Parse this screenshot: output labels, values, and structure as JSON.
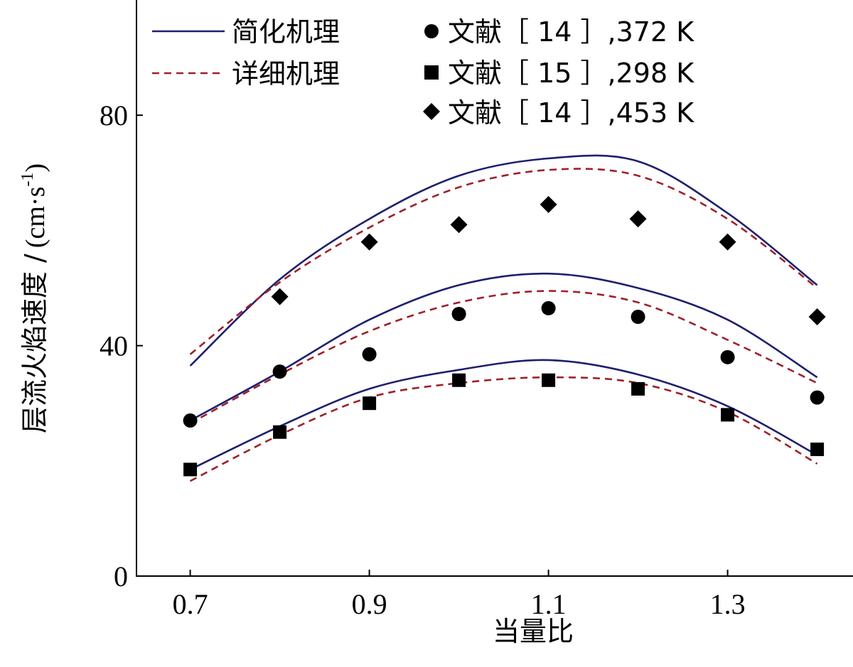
{
  "chart_data": {
    "type": "line",
    "title": "",
    "xlabel": "当量比",
    "ylabel": "层流火焰速度 /",
    "ylabel_unit": "(cm·s",
    "ylabel_unit_sup": "-1",
    "ylabel_unit_close": ")",
    "xlim": [
      0.64,
      1.44
    ],
    "ylim": [
      0,
      100
    ],
    "xticks": [
      {
        "value": 0.7,
        "label": "0.7"
      },
      {
        "value": 0.9,
        "label": "0.9"
      },
      {
        "value": 1.1,
        "label": "1.1"
      },
      {
        "value": 1.3,
        "label": "1.3"
      }
    ],
    "yticks": [
      {
        "value": 0,
        "label": "0"
      },
      {
        "value": 40,
        "label": "40"
      },
      {
        "value": 80,
        "label": "80"
      }
    ],
    "colors": {
      "solid": "#1f1f6e",
      "dashed": "#a0202a",
      "markers": "#000000",
      "axis": "#000000"
    },
    "legend": {
      "position": "top",
      "entries": [
        {
          "kind": "solid",
          "label": "简化机理"
        },
        {
          "kind": "dashed",
          "label": "详细机理"
        },
        {
          "kind": "circle",
          "label": "文献［ 14 ］,372 K"
        },
        {
          "kind": "square",
          "label": "文献［ 15 ］,298 K"
        },
        {
          "kind": "diamond",
          "label": "文献［ 14 ］,453 K"
        }
      ]
    },
    "x": [
      0.7,
      0.8,
      0.9,
      1.0,
      1.1,
      1.2,
      1.3,
      1.4
    ],
    "curves": [
      {
        "name": "简化机理 453 K",
        "style": "solid",
        "values": [
          36.5,
          51.5,
          62.0,
          69.5,
          72.5,
          72.0,
          63.0,
          50.5
        ]
      },
      {
        "name": "详细机理 453 K",
        "style": "dashed",
        "values": [
          38.5,
          51.0,
          60.5,
          67.5,
          70.5,
          69.5,
          62.0,
          50.0
        ]
      },
      {
        "name": "简化机理 372 K",
        "style": "solid",
        "values": [
          27.0,
          35.5,
          44.5,
          50.5,
          52.5,
          50.0,
          44.5,
          34.5
        ]
      },
      {
        "name": "详细机理 372 K",
        "style": "dashed",
        "values": [
          26.5,
          35.0,
          42.5,
          47.5,
          49.5,
          47.5,
          41.0,
          33.5
        ]
      },
      {
        "name": "简化机理 298 K",
        "style": "solid",
        "values": [
          18.5,
          26.0,
          32.5,
          35.8,
          37.5,
          35.0,
          29.5,
          21.0
        ]
      },
      {
        "name": "详细机理 298 K",
        "style": "dashed",
        "values": [
          16.5,
          24.5,
          31.0,
          33.5,
          34.5,
          33.5,
          28.5,
          19.5
        ]
      }
    ],
    "series": [
      {
        "name": "文献［ 14 ］,372 K",
        "marker": "circle",
        "values": [
          27.0,
          35.5,
          38.5,
          45.5,
          46.5,
          45.0,
          38.0,
          31.0
        ]
      },
      {
        "name": "文献［ 15 ］,298 K",
        "marker": "square",
        "values": [
          18.5,
          25.0,
          30.0,
          34.0,
          34.0,
          32.5,
          28.0,
          22.0
        ]
      },
      {
        "name": "文献［ 14 ］,453 K",
        "marker": "diamond",
        "values": [
          null,
          48.5,
          58.0,
          61.0,
          64.5,
          62.0,
          58.0,
          45.0
        ]
      }
    ]
  }
}
